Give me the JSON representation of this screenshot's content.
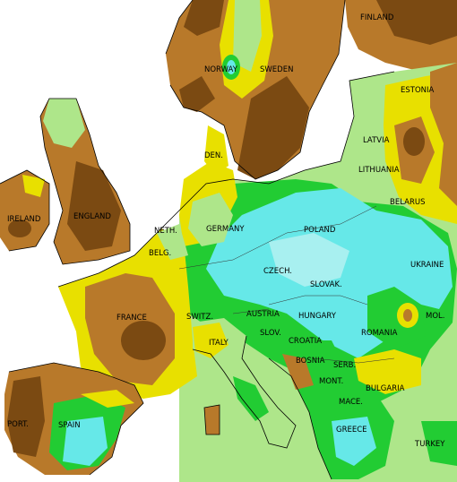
{
  "labels": [
    "FINLAND",
    "NORWAY",
    "SWEDEN",
    "ESTONIA",
    "LATVIA",
    "LITHUANIA",
    "DEN.",
    "IRELAND",
    "ENGLAND",
    "NETH.",
    "BELG.",
    "GERMANY",
    "POLAND",
    "BELARUS",
    "UKRAINE",
    "CZECH.",
    "SLOVAK.",
    "FRANCE",
    "SWITZ.",
    "AUSTRIA",
    "HUNGARY",
    "ROMANIA",
    "MOL.",
    "ITALY",
    "SLOV.",
    "CROATIA",
    "BOSNIA",
    "SERB.",
    "MONT.",
    "BULGARIA",
    "MACE.",
    "GREECE",
    "TURKEY",
    "PORT.",
    "SPAIN"
  ]
}
